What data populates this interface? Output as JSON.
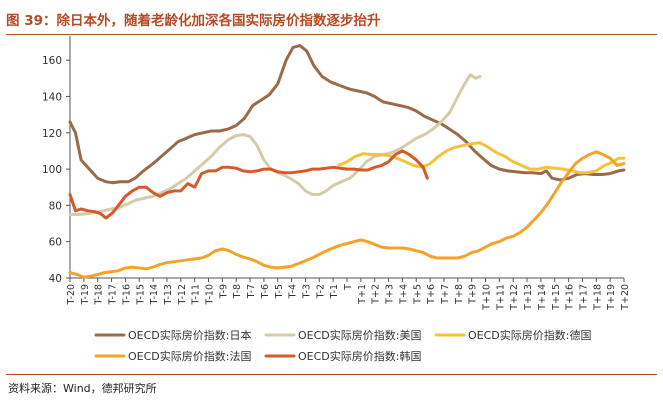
{
  "header": {
    "title": "图 39：除日本外，随着老龄化加深各国实际房价指数逐步抬升"
  },
  "footer": {
    "source": "资料来源：Wind，德邦研究所"
  },
  "chart_data": {
    "type": "line",
    "title": "图 39：除日本外，随着老龄化加深各国实际房价指数逐步抬升",
    "xlabel": "",
    "ylabel": "",
    "ylim": [
      40,
      170
    ],
    "yticks": [
      40,
      60,
      80,
      100,
      120,
      140,
      160
    ],
    "grid": false,
    "legend_position": "bottom",
    "xlim": [
      -20,
      20
    ],
    "x_tick_labels": [
      "T-20",
      "T-19",
      "T-18",
      "T-17",
      "T-16",
      "T-15",
      "T-14",
      "T-13",
      "T-12",
      "T-11",
      "T-10",
      "T-9",
      "T-8",
      "T-7",
      "T-6",
      "T-5",
      "T-4",
      "T-3",
      "T-2",
      "T-1",
      "T",
      "T+1",
      "T+2",
      "T+3",
      "T+4",
      "T+5",
      "T+6",
      "T+7",
      "T+8",
      "T+9",
      "T+10",
      "T+11",
      "T+12",
      "T+13",
      "T+14",
      "T+15",
      "T+16",
      "T+17",
      "T+18",
      "T+19",
      "T+20"
    ],
    "series": [
      {
        "name": "OECD实际房价指数:日本",
        "color": "#996b4a",
        "points": [
          [
            -20,
            126
          ],
          [
            -19.6,
            120
          ],
          [
            -19.2,
            105
          ],
          [
            -18.6,
            100
          ],
          [
            -18,
            95
          ],
          [
            -17.4,
            93
          ],
          [
            -16.9,
            92.5
          ],
          [
            -16.4,
            93
          ],
          [
            -15.8,
            93
          ],
          [
            -15.3,
            95
          ],
          [
            -14.7,
            99
          ],
          [
            -14,
            103
          ],
          [
            -13.4,
            107
          ],
          [
            -12.8,
            111
          ],
          [
            -12.2,
            115
          ],
          [
            -11.6,
            117
          ],
          [
            -11,
            119
          ],
          [
            -10.4,
            120
          ],
          [
            -9.8,
            121
          ],
          [
            -9.2,
            121
          ],
          [
            -8.6,
            122
          ],
          [
            -8,
            124
          ],
          [
            -7.4,
            128
          ],
          [
            -6.8,
            135
          ],
          [
            -6.2,
            138
          ],
          [
            -5.6,
            141
          ],
          [
            -5,
            147
          ],
          [
            -4.4,
            160
          ],
          [
            -3.9,
            167
          ],
          [
            -3.4,
            168
          ],
          [
            -2.9,
            165
          ],
          [
            -2.4,
            157
          ],
          [
            -1.8,
            151
          ],
          [
            -1.2,
            148
          ],
          [
            -0.5,
            146
          ],
          [
            0.2,
            144
          ],
          [
            0.8,
            143
          ],
          [
            1.4,
            142
          ],
          [
            2,
            140
          ],
          [
            2.6,
            137
          ],
          [
            3.2,
            136
          ],
          [
            3.8,
            135
          ],
          [
            4.4,
            134
          ],
          [
            5,
            132
          ],
          [
            5.6,
            129
          ],
          [
            6.2,
            127
          ],
          [
            6.8,
            125
          ],
          [
            7.4,
            122
          ],
          [
            8,
            119
          ],
          [
            8.6,
            115
          ],
          [
            9.2,
            110
          ],
          [
            9.8,
            106
          ],
          [
            10.4,
            102
          ],
          [
            11,
            100
          ],
          [
            11.6,
            99
          ],
          [
            12.2,
            98.5
          ],
          [
            12.8,
            98
          ],
          [
            13.4,
            98
          ],
          [
            14,
            97.5
          ],
          [
            14.4,
            99
          ],
          [
            14.8,
            95
          ],
          [
            15.4,
            94
          ],
          [
            16,
            95
          ],
          [
            16.6,
            97
          ],
          [
            17.2,
            97.5
          ],
          [
            17.8,
            97
          ],
          [
            18.4,
            97
          ],
          [
            19,
            97.5
          ],
          [
            19.6,
            99
          ],
          [
            20,
            99.5
          ]
        ]
      },
      {
        "name": "OECD实际房价指数:美国",
        "color": "#d6cba8",
        "points": [
          [
            -20,
            75
          ],
          [
            -19.4,
            75
          ],
          [
            -18.8,
            75.5
          ],
          [
            -18.2,
            76
          ],
          [
            -17.6,
            77
          ],
          [
            -17,
            78
          ],
          [
            -16.4,
            79
          ],
          [
            -15.8,
            81
          ],
          [
            -15.2,
            83
          ],
          [
            -14.6,
            84
          ],
          [
            -14,
            85
          ],
          [
            -13.4,
            87
          ],
          [
            -12.8,
            89
          ],
          [
            -12.2,
            92
          ],
          [
            -11.6,
            95
          ],
          [
            -11,
            99
          ],
          [
            -10.4,
            103
          ],
          [
            -9.8,
            107
          ],
          [
            -9.2,
            112
          ],
          [
            -8.6,
            116
          ],
          [
            -8,
            118.5
          ],
          [
            -7.5,
            119
          ],
          [
            -7,
            118
          ],
          [
            -6.5,
            113
          ],
          [
            -6,
            105
          ],
          [
            -5.5,
            100
          ],
          [
            -5,
            98
          ],
          [
            -4.5,
            96.5
          ],
          [
            -4,
            94.5
          ],
          [
            -3.5,
            92
          ],
          [
            -3,
            88
          ],
          [
            -2.5,
            86
          ],
          [
            -2,
            86
          ],
          [
            -1.5,
            88
          ],
          [
            -1,
            91
          ],
          [
            -0.4,
            93
          ],
          [
            0.2,
            95
          ],
          [
            0.8,
            99
          ],
          [
            1.4,
            104
          ],
          [
            2,
            107
          ],
          [
            2.6,
            108
          ],
          [
            3.2,
            109
          ],
          [
            3.8,
            111
          ],
          [
            4.4,
            114
          ],
          [
            5,
            117
          ],
          [
            5.6,
            119
          ],
          [
            6.2,
            122
          ],
          [
            6.8,
            126
          ],
          [
            7.4,
            131
          ],
          [
            8,
            140
          ],
          [
            8.5,
            147
          ],
          [
            8.9,
            152
          ],
          [
            9.3,
            150
          ],
          [
            9.6,
            151
          ]
        ]
      },
      {
        "name": "OECD实际房价指数:德国",
        "color": "#f6c237",
        "points": [
          [
            -0.6,
            102
          ],
          [
            0,
            104
          ],
          [
            0.6,
            107
          ],
          [
            1.2,
            108.5
          ],
          [
            1.8,
            108
          ],
          [
            2.4,
            108
          ],
          [
            3,
            107.5
          ],
          [
            3.6,
            106
          ],
          [
            4.2,
            104
          ],
          [
            4.8,
            102
          ],
          [
            5.4,
            101
          ],
          [
            6,
            103
          ],
          [
            6.6,
            107
          ],
          [
            7.2,
            110
          ],
          [
            7.8,
            112
          ],
          [
            8.4,
            113
          ],
          [
            9,
            114
          ],
          [
            9.6,
            114.5
          ],
          [
            10.2,
            112
          ],
          [
            10.8,
            109
          ],
          [
            11.4,
            107
          ],
          [
            12,
            104
          ],
          [
            12.6,
            102
          ],
          [
            13.2,
            100
          ],
          [
            13.8,
            100
          ],
          [
            14.4,
            101
          ],
          [
            15,
            100.5
          ],
          [
            15.6,
            100
          ],
          [
            16.2,
            99
          ],
          [
            16.8,
            98
          ],
          [
            17.4,
            98
          ],
          [
            18,
            99
          ],
          [
            18.6,
            102
          ],
          [
            19.2,
            104
          ],
          [
            19.6,
            106
          ],
          [
            20,
            106
          ]
        ]
      },
      {
        "name": "OECD实际房价指数:法国",
        "color": "#f4a32a",
        "points": [
          [
            -20,
            43
          ],
          [
            -19.5,
            42
          ],
          [
            -19,
            40.5
          ],
          [
            -18.5,
            41
          ],
          [
            -18,
            42
          ],
          [
            -17.5,
            43
          ],
          [
            -17,
            43.5
          ],
          [
            -16.5,
            44
          ],
          [
            -16,
            45.5
          ],
          [
            -15.5,
            46
          ],
          [
            -15,
            45.5
          ],
          [
            -14.5,
            45
          ],
          [
            -14,
            46
          ],
          [
            -13.5,
            47.5
          ],
          [
            -13,
            48.5
          ],
          [
            -12.5,
            49
          ],
          [
            -12,
            49.5
          ],
          [
            -11.5,
            50
          ],
          [
            -11,
            50.5
          ],
          [
            -10.5,
            51
          ],
          [
            -10,
            52.5
          ],
          [
            -9.5,
            55
          ],
          [
            -9,
            56
          ],
          [
            -8.5,
            55
          ],
          [
            -8,
            53
          ],
          [
            -7.5,
            51.5
          ],
          [
            -7,
            50.5
          ],
          [
            -6.5,
            49
          ],
          [
            -6,
            47
          ],
          [
            -5.5,
            46
          ],
          [
            -5,
            45.5
          ],
          [
            -4.5,
            46
          ],
          [
            -4,
            46.5
          ],
          [
            -3.5,
            48
          ],
          [
            -3,
            49.5
          ],
          [
            -2.5,
            51
          ],
          [
            -2,
            53
          ],
          [
            -1.5,
            55
          ],
          [
            -1,
            56.5
          ],
          [
            -0.5,
            58
          ],
          [
            0,
            59
          ],
          [
            0.5,
            60
          ],
          [
            1,
            61
          ],
          [
            1.5,
            60
          ],
          [
            2,
            58.5
          ],
          [
            2.5,
            57
          ],
          [
            3,
            56.5
          ],
          [
            3.5,
            56.5
          ],
          [
            4,
            56.5
          ],
          [
            4.5,
            56
          ],
          [
            5,
            55
          ],
          [
            5.5,
            54
          ],
          [
            6,
            52
          ],
          [
            6.5,
            51
          ],
          [
            7,
            51
          ],
          [
            7.5,
            51
          ],
          [
            8,
            51
          ],
          [
            8.5,
            52
          ],
          [
            9,
            54
          ],
          [
            9.5,
            55
          ],
          [
            10,
            57
          ],
          [
            10.5,
            59
          ],
          [
            11,
            60
          ],
          [
            11.5,
            62
          ],
          [
            12,
            63
          ],
          [
            12.5,
            65
          ],
          [
            13,
            68
          ],
          [
            13.5,
            72
          ],
          [
            14,
            76
          ],
          [
            14.5,
            81
          ],
          [
            15,
            87
          ],
          [
            15.5,
            93
          ],
          [
            16,
            98
          ],
          [
            16.5,
            103
          ],
          [
            17,
            106
          ],
          [
            17.5,
            108
          ],
          [
            18,
            109.5
          ],
          [
            18.5,
            108
          ],
          [
            19,
            106
          ],
          [
            19.5,
            102
          ],
          [
            20,
            103
          ]
        ]
      },
      {
        "name": "OECD实际房价指数:韩国",
        "color": "#d55a2a",
        "points": [
          [
            -20,
            86
          ],
          [
            -19.6,
            77
          ],
          [
            -19.2,
            78
          ],
          [
            -18.7,
            77
          ],
          [
            -18.2,
            76.5
          ],
          [
            -17.8,
            75.5
          ],
          [
            -17.4,
            73
          ],
          [
            -16.9,
            76
          ],
          [
            -16.5,
            80
          ],
          [
            -16,
            85
          ],
          [
            -15.5,
            88
          ],
          [
            -15,
            90
          ],
          [
            -14.5,
            90
          ],
          [
            -14,
            87
          ],
          [
            -13.5,
            85
          ],
          [
            -13,
            87
          ],
          [
            -12.5,
            88
          ],
          [
            -12,
            88
          ],
          [
            -11.5,
            92
          ],
          [
            -11,
            90
          ],
          [
            -10.5,
            97.5
          ],
          [
            -10,
            99
          ],
          [
            -9.5,
            99
          ],
          [
            -9,
            101
          ],
          [
            -8.5,
            101
          ],
          [
            -8,
            100.5
          ],
          [
            -7.5,
            99
          ],
          [
            -7,
            98.5
          ],
          [
            -6.5,
            99
          ],
          [
            -6,
            100
          ],
          [
            -5.5,
            100
          ],
          [
            -5,
            98.5
          ],
          [
            -4.5,
            98
          ],
          [
            -4,
            98
          ],
          [
            -3.5,
            98.5
          ],
          [
            -3,
            99
          ],
          [
            -2.5,
            100
          ],
          [
            -2,
            100
          ],
          [
            -1.5,
            100.5
          ],
          [
            -1,
            101
          ],
          [
            -0.5,
            100.5
          ],
          [
            0,
            100
          ],
          [
            0.5,
            100
          ],
          [
            1,
            99.5
          ],
          [
            1.5,
            99.5
          ],
          [
            2,
            101
          ],
          [
            2.5,
            102
          ],
          [
            3,
            104
          ],
          [
            3.5,
            108
          ],
          [
            4,
            110
          ],
          [
            4.5,
            108
          ],
          [
            5,
            105
          ],
          [
            5.5,
            101
          ],
          [
            5.8,
            95
          ]
        ]
      }
    ]
  }
}
